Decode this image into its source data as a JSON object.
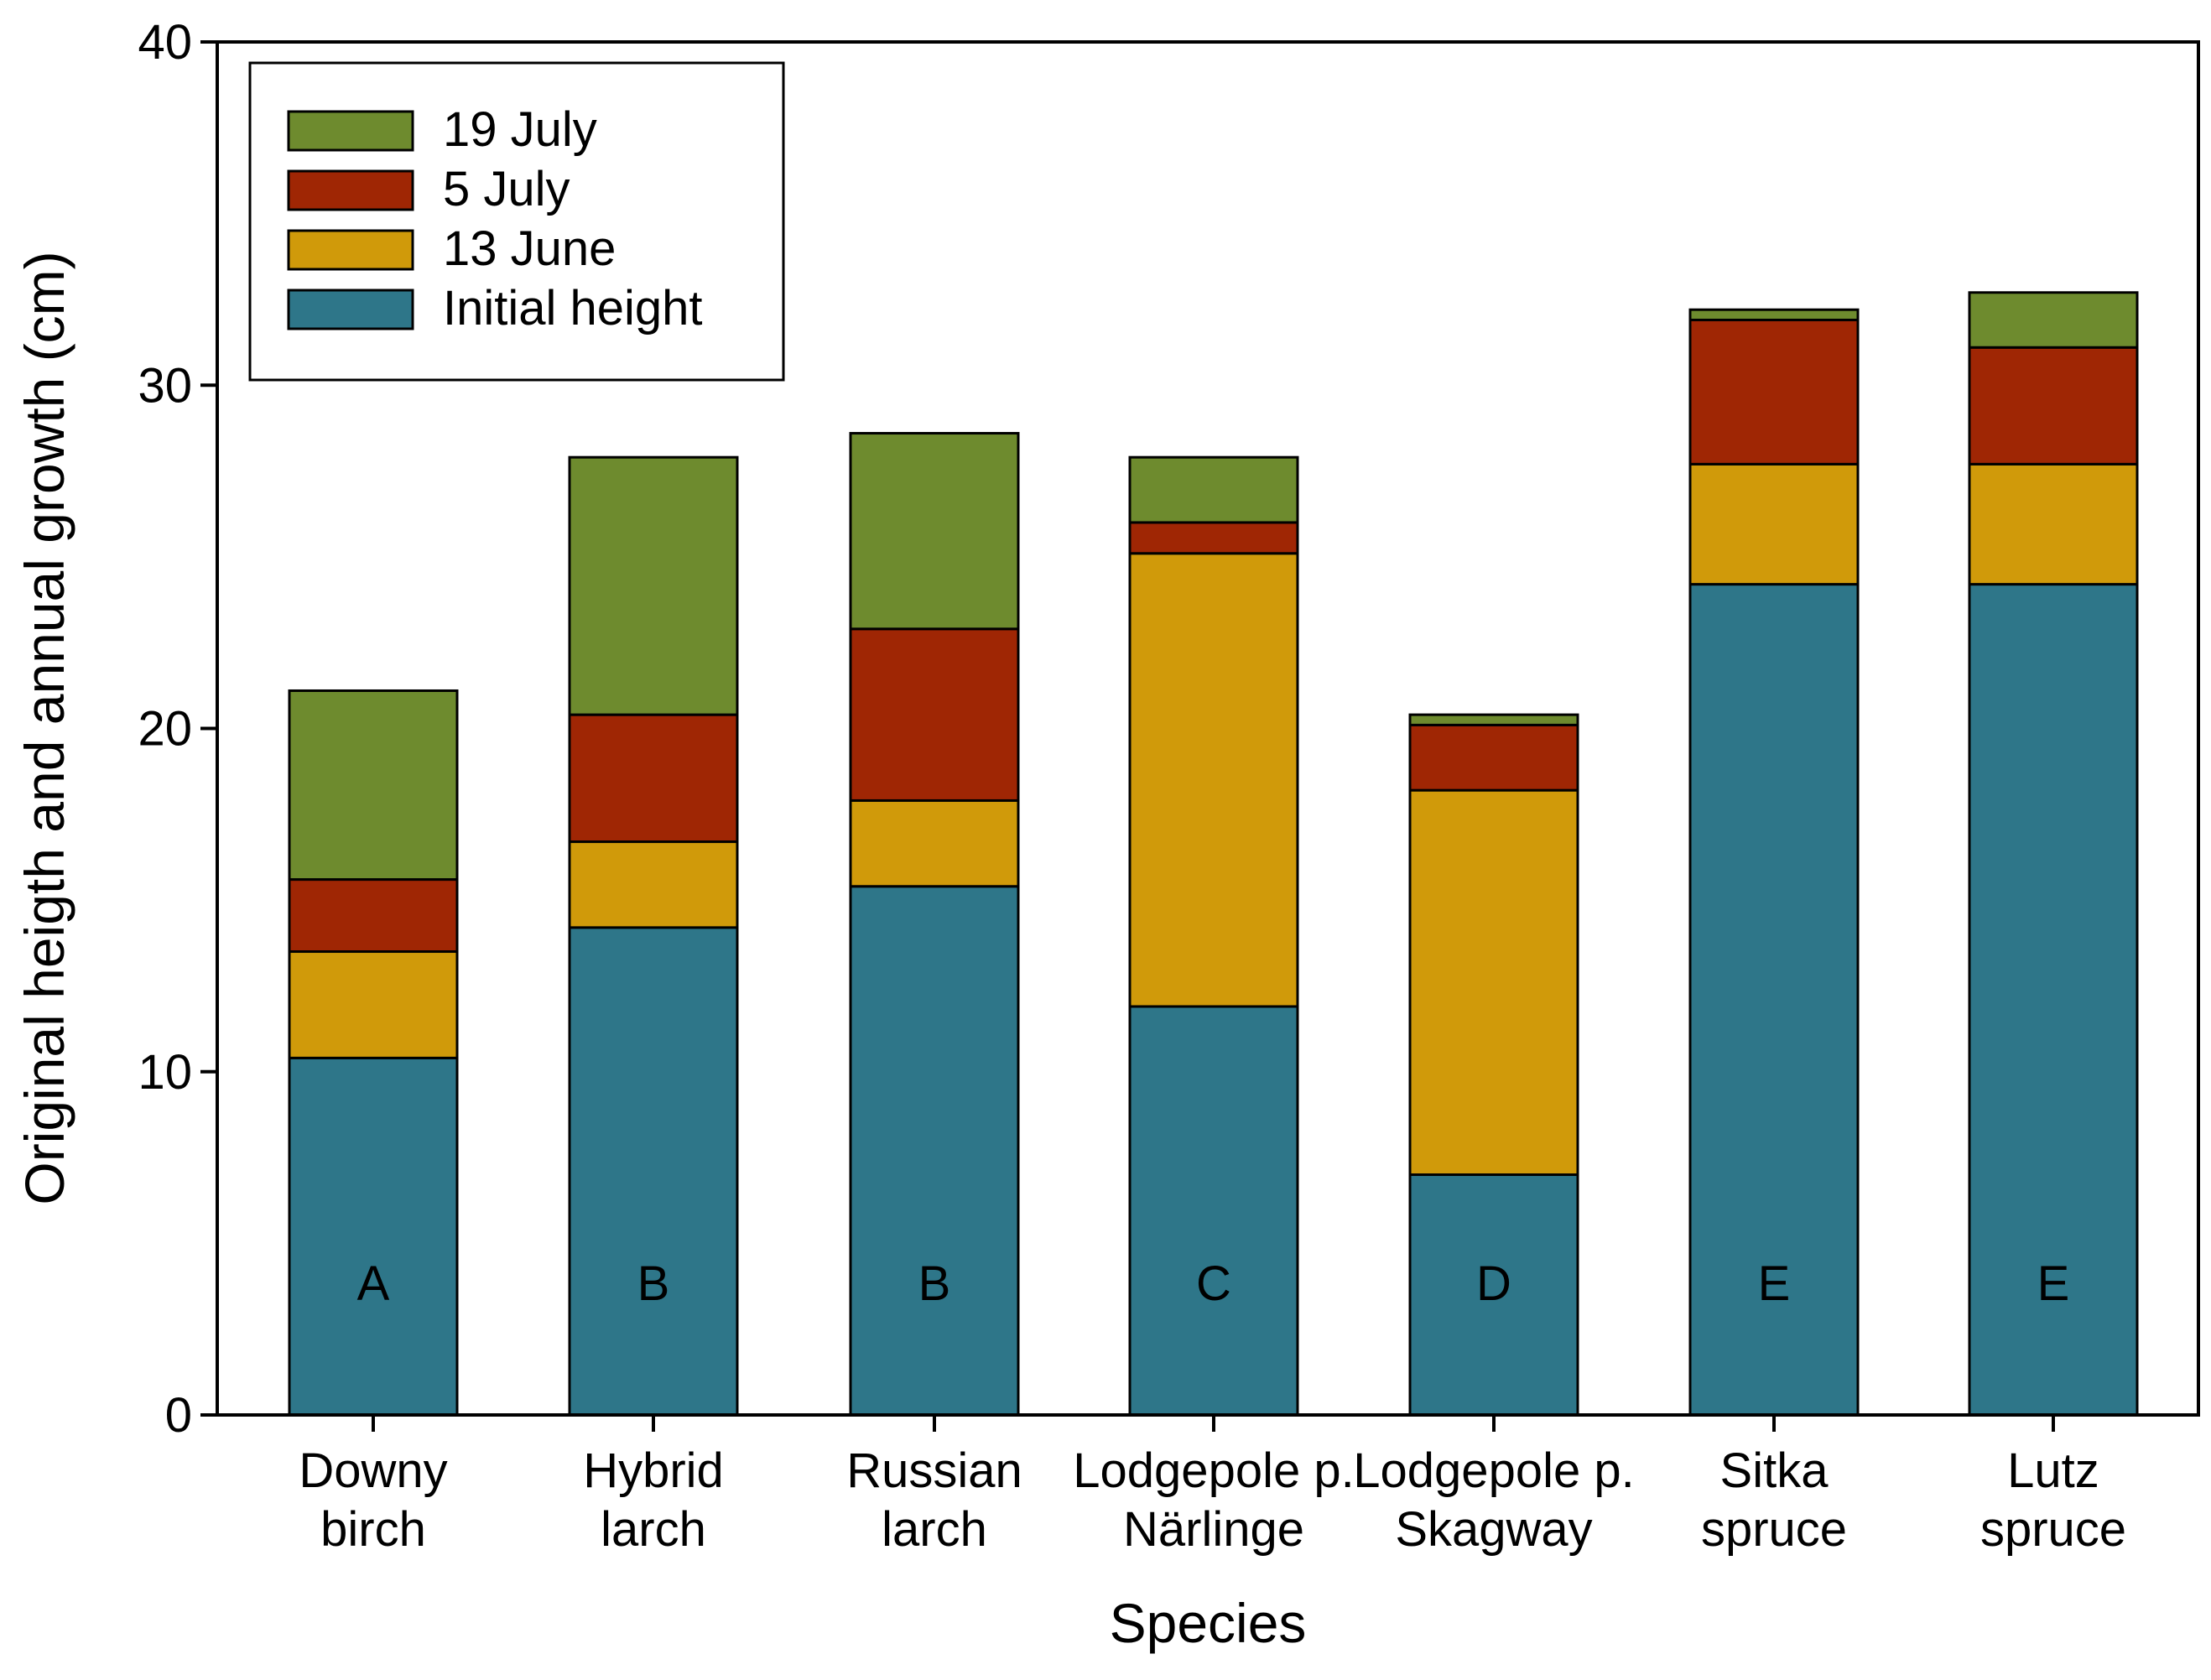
{
  "chart_data": {
    "type": "bar",
    "stacked": true,
    "title": "",
    "xlabel": "Species",
    "ylabel": "Original heigth and annual growth (cm)",
    "ylim": [
      0,
      40
    ],
    "yticks": [
      0,
      10,
      20,
      30,
      40
    ],
    "grid": false,
    "legend_position": "top-left",
    "categories": [
      [
        "Downy",
        "birch"
      ],
      [
        "Hybrid",
        "larch"
      ],
      [
        "Russian",
        "larch"
      ],
      [
        "Lodgepole p.",
        "Närlinge"
      ],
      [
        "Lodgepole p.",
        "Skagway"
      ],
      [
        "Sitka",
        "spruce"
      ],
      [
        "Lutz",
        "spruce"
      ]
    ],
    "series": [
      {
        "name": "Initial height",
        "color": "#2E7689",
        "values": [
          10.4,
          14.2,
          15.4,
          11.9,
          7.0,
          24.2,
          24.2
        ]
      },
      {
        "name": "13 June",
        "color": "#D09A0A",
        "values": [
          3.1,
          2.5,
          2.5,
          13.2,
          11.2,
          3.5,
          3.5
        ]
      },
      {
        "name": "5 July",
        "color": "#9F2604",
        "values": [
          2.1,
          3.7,
          5.0,
          0.9,
          1.9,
          4.2,
          3.4
        ]
      },
      {
        "name": "19 July",
        "color": "#6E8B2E",
        "values": [
          5.5,
          7.5,
          5.7,
          1.9,
          0.3,
          0.3,
          1.6
        ]
      }
    ],
    "legend_order": [
      "19 July",
      "5 July",
      "13 June",
      "Initial height"
    ],
    "group_letters": [
      "A",
      "B",
      "B",
      "C",
      "D",
      "E",
      "E"
    ]
  }
}
